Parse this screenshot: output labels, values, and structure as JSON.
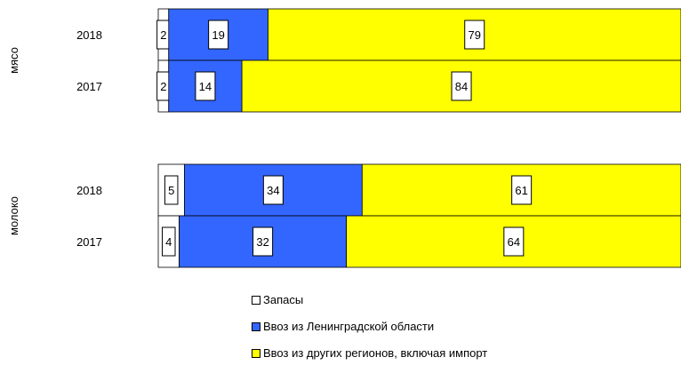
{
  "chart_data": {
    "type": "bar",
    "orientation": "horizontal",
    "stacked": "percent",
    "groups": [
      {
        "name": "мясо",
        "bars": [
          {
            "year": "2018",
            "values": [
              2,
              19,
              79
            ]
          },
          {
            "year": "2017",
            "values": [
              2,
              14,
              84
            ]
          }
        ]
      },
      {
        "name": "молоко",
        "bars": [
          {
            "year": "2018",
            "values": [
              5,
              34,
              61
            ]
          },
          {
            "year": "2017",
            "values": [
              4,
              32,
              64
            ]
          }
        ]
      }
    ],
    "series": [
      {
        "name": "Запасы",
        "color": "#ffffff"
      },
      {
        "name": "Ввоз из Ленинградской области",
        "color": "#3366ff"
      },
      {
        "name": "Ввоз из других регионов, включая импорт",
        "color": "#ffff00"
      }
    ],
    "xlim": [
      0,
      100
    ],
    "grid": false,
    "data_labels": true,
    "legend_position": "bottom"
  }
}
